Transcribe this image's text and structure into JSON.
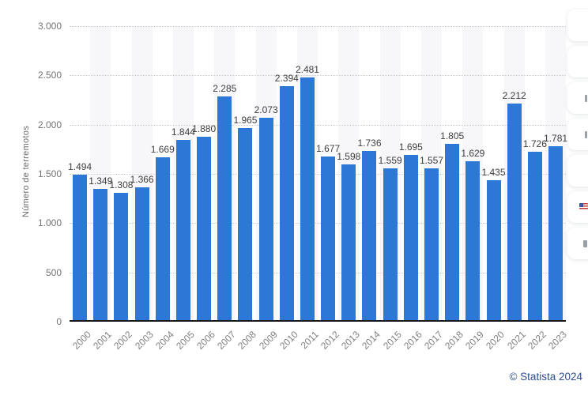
{
  "chart_data": {
    "type": "bar",
    "title": "",
    "xlabel": "",
    "ylabel": "Número de terremotos",
    "categories": [
      "2000",
      "2001",
      "2002",
      "2003",
      "2004",
      "2005",
      "2006",
      "2007",
      "2008",
      "2009",
      "2010",
      "2011",
      "2012",
      "2013",
      "2014",
      "2015",
      "2016",
      "2017",
      "2018",
      "2019",
      "2020",
      "2021",
      "2022",
      "2023"
    ],
    "values": [
      1494,
      1349,
      1308,
      1366,
      1669,
      1844,
      1880,
      2285,
      1965,
      2073,
      2394,
      2481,
      1677,
      1598,
      1736,
      1559,
      1695,
      1557,
      1805,
      1629,
      1435,
      2212,
      1726,
      1781
    ],
    "value_labels": [
      "1.494",
      "1.349",
      "1.308",
      "1.366",
      "1.669",
      "1.844",
      "1.880",
      "2.285",
      "1.965",
      "2.073",
      "2.394",
      "2.481",
      "1.677",
      "1.598",
      "1.736",
      "1.559",
      "1.695",
      "1.557",
      "1.805",
      "1.629",
      "1.435",
      "2.212",
      "1.726",
      "1.781"
    ],
    "y_tick_labels": [
      "3.000",
      "2.500",
      "2.000",
      "1.500",
      "1.000",
      "500",
      "0"
    ],
    "y_tick_values": [
      3000,
      2500,
      2000,
      1500,
      1000,
      500,
      0
    ],
    "ylim": [
      0,
      3000
    ],
    "grid": "horizontal-dotted",
    "legend": "none",
    "bar_color": "#2d78d7",
    "stripe_color": "#f7f7f9",
    "striped_columns": "alternate-odd"
  },
  "attribution": "© Statista 2024",
  "toolbar": {
    "button_count": 7
  }
}
